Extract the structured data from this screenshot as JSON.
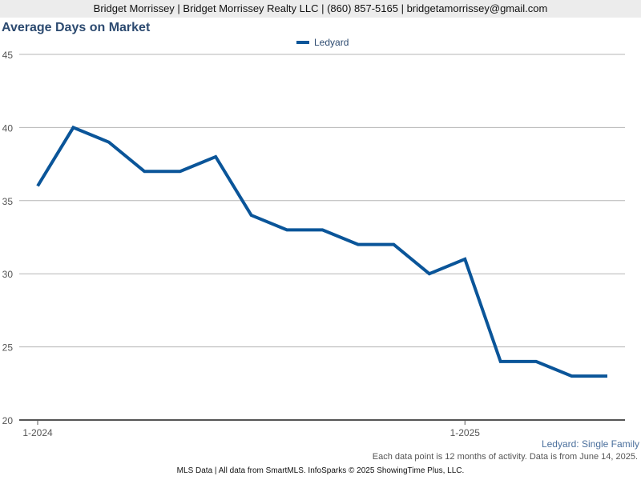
{
  "header": {
    "contact": "Bridget Morrissey | Bridget Morrissey Realty LLC | (860) 857-5165 | bridgetamorrissey@gmail.com"
  },
  "chart_data": {
    "type": "line",
    "title": "Average Days on Market",
    "x": [
      "1-2024",
      "2-2024",
      "3-2024",
      "4-2024",
      "5-2024",
      "6-2024",
      "7-2024",
      "8-2024",
      "9-2024",
      "10-2024",
      "11-2024",
      "12-2024",
      "1-2025",
      "2-2025",
      "3-2025",
      "4-2025",
      "5-2025"
    ],
    "x_tick_labels": [
      "1-2024",
      "1-2025"
    ],
    "series": [
      {
        "name": "Ledyard",
        "color": "#0a5599",
        "values": [
          36,
          40,
          39,
          37,
          37,
          38,
          34,
          33,
          33,
          32,
          32,
          30,
          31,
          24,
          24,
          23,
          23
        ]
      }
    ],
    "ylim": [
      20,
      45
    ],
    "y_ticks": [
      20,
      25,
      30,
      35,
      40,
      45
    ],
    "grid": true,
    "legend": "top-center",
    "subtitle": "Ledyard: Single Family",
    "note": "Each data point is 12 months of activity. Data is from June 14, 2025."
  },
  "footer": {
    "source": "MLS Data | All data from SmartMLS. InfoSparks © 2025 ShowingTime Plus, LLC."
  }
}
